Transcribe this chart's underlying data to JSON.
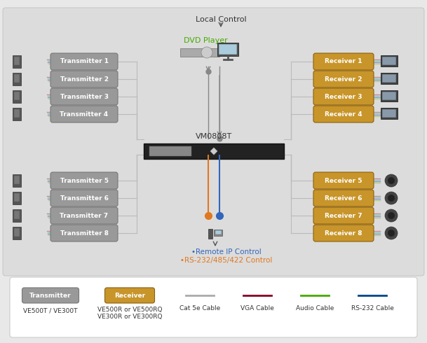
{
  "bg_color": "#e8e8e8",
  "title": "",
  "transmitters": [
    "Transmitter 1",
    "Transmitter 2",
    "Transmitter 3",
    "Transmitter 4",
    "Transmitter 5",
    "Transmitter 6",
    "Transmitter 7",
    "Transmitter 8"
  ],
  "receivers": [
    "Receiver 1",
    "Receiver 2",
    "Receiver 3",
    "Receiver 4",
    "Receiver 5",
    "Receiver 6",
    "Receiver 7",
    "Receiver 8"
  ],
  "transmitter_color_grad_top": "#b0b0b0",
  "transmitter_color_grad_bot": "#888888",
  "transmitter_text_color": "#ffffff",
  "receiver_color_grad_top": "#d4b060",
  "receiver_color_grad_bot": "#a07820",
  "receiver_text_color": "#ffffff",
  "switch_label": "VM0808T",
  "dvd_label": "DVD Player",
  "local_control_label": "Local Control",
  "remote_ip_label": "Remote IP Control",
  "rs232_label": "RS-232/485/422 Control",
  "remote_ip_color": "#3366bb",
  "rs232_color": "#e07820",
  "line_colors": {
    "cat5e": "#bbbbbb",
    "vga": "#990000",
    "audio": "#44aa00",
    "rs232": "#004488"
  },
  "legend_items": [
    {
      "label": "VE500T / VE300T",
      "label2": "",
      "type": "transmitter_badge"
    },
    {
      "label": "VE500R or VE500RQ",
      "label2": "VE300R or VE300RQ",
      "type": "receiver_badge"
    },
    {
      "label": "Cat 5e Cable",
      "label2": "",
      "type": "line",
      "color": "#aaaaaa"
    },
    {
      "label": "VGA Cable",
      "label2": "",
      "type": "line",
      "color": "#880022"
    },
    {
      "label": "Audio Cable",
      "label2": "",
      "type": "line",
      "color": "#44aa00"
    },
    {
      "label": "RS-232 Cable",
      "label2": "",
      "type": "line",
      "color": "#004488"
    }
  ]
}
